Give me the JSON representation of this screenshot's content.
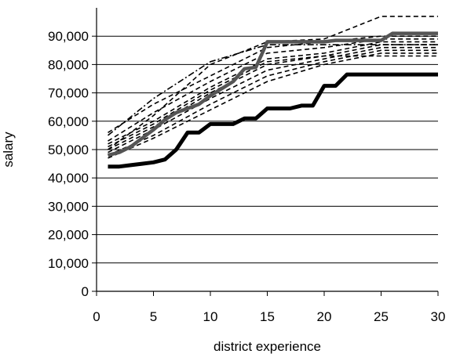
{
  "chart_data": {
    "type": "line",
    "title": "",
    "xlabel": "district experience",
    "ylabel": "salary",
    "xlim": [
      0,
      30
    ],
    "ylim": [
      0,
      100000
    ],
    "x_ticks": [
      0,
      5,
      10,
      15,
      20,
      25,
      30
    ],
    "x_tick_labels": [
      "0",
      "5",
      "10",
      "15",
      "20",
      "25",
      "30"
    ],
    "y_ticks": [
      0,
      10000,
      20000,
      30000,
      40000,
      50000,
      60000,
      70000,
      80000,
      90000
    ],
    "y_tick_labels": [
      "0",
      "10,000",
      "20,000",
      "30,000",
      "40,000",
      "50,000",
      "60,000",
      "70,000",
      "80,000",
      "90,000"
    ],
    "grid": "horizontal",
    "legend": "none",
    "series": [
      {
        "style": "thick-black",
        "color": "#000000",
        "points": [
          [
            1,
            44000
          ],
          [
            2,
            44000
          ],
          [
            3,
            44500
          ],
          [
            4,
            45000
          ],
          [
            5,
            45500
          ],
          [
            6,
            46500
          ],
          [
            7,
            50000
          ],
          [
            8,
            56000
          ],
          [
            9,
            56000
          ],
          [
            10,
            59000
          ],
          [
            11,
            59000
          ],
          [
            12,
            59000
          ],
          [
            13,
            61000
          ],
          [
            14,
            61000
          ],
          [
            15,
            64500
          ],
          [
            16,
            64500
          ],
          [
            17,
            64500
          ],
          [
            18,
            65500
          ],
          [
            19,
            65500
          ],
          [
            20,
            72500
          ],
          [
            21,
            72500
          ],
          [
            22,
            76500
          ],
          [
            23,
            76500
          ],
          [
            24,
            76500
          ],
          [
            25,
            76500
          ],
          [
            26,
            76500
          ],
          [
            27,
            76500
          ],
          [
            28,
            76500
          ],
          [
            29,
            76500
          ],
          [
            30,
            76500
          ]
        ]
      },
      {
        "style": "thick-gray",
        "color": "#555555",
        "points": [
          [
            1,
            48000
          ],
          [
            2,
            49000
          ],
          [
            3,
            51000
          ],
          [
            4,
            54000
          ],
          [
            5,
            57000
          ],
          [
            6,
            60500
          ],
          [
            7,
            63000
          ],
          [
            8,
            64500
          ],
          [
            9,
            66000
          ],
          [
            10,
            69000
          ],
          [
            11,
            71500
          ],
          [
            12,
            74000
          ],
          [
            13,
            78500
          ],
          [
            14,
            79000
          ],
          [
            15,
            88000
          ],
          [
            16,
            88000
          ],
          [
            17,
            88000
          ],
          [
            18,
            88000
          ],
          [
            19,
            88000
          ],
          [
            20,
            88000
          ],
          [
            21,
            88500
          ],
          [
            22,
            88500
          ],
          [
            23,
            88500
          ],
          [
            24,
            88500
          ],
          [
            25,
            88500
          ],
          [
            26,
            91000
          ],
          [
            27,
            91000
          ],
          [
            28,
            91000
          ],
          [
            29,
            91000
          ],
          [
            30,
            91000
          ]
        ]
      },
      {
        "style": "dashed",
        "color": "#000000",
        "points": [
          [
            1,
            50000
          ],
          [
            5,
            62000
          ],
          [
            10,
            80000
          ],
          [
            15,
            88000
          ],
          [
            20,
            89000
          ],
          [
            25,
            97000
          ],
          [
            30,
            97000
          ]
        ]
      },
      {
        "style": "dashed",
        "color": "#000000",
        "points": [
          [
            1,
            56000
          ],
          [
            5,
            66000
          ],
          [
            10,
            76000
          ],
          [
            15,
            86000
          ],
          [
            20,
            88000
          ],
          [
            25,
            90000
          ],
          [
            30,
            90000
          ]
        ]
      },
      {
        "style": "dashed",
        "color": "#000000",
        "points": [
          [
            1,
            53000
          ],
          [
            5,
            63000
          ],
          [
            10,
            74000
          ],
          [
            15,
            84000
          ],
          [
            20,
            86000
          ],
          [
            25,
            89000
          ],
          [
            30,
            89000
          ]
        ]
      },
      {
        "style": "dashed",
        "color": "#000000",
        "points": [
          [
            1,
            52000
          ],
          [
            5,
            60000
          ],
          [
            10,
            72000
          ],
          [
            15,
            82000
          ],
          [
            20,
            84000
          ],
          [
            25,
            88000
          ],
          [
            30,
            88000
          ]
        ]
      },
      {
        "style": "dashed",
        "color": "#000000",
        "points": [
          [
            1,
            50000
          ],
          [
            5,
            58000
          ],
          [
            10,
            70000
          ],
          [
            15,
            80000
          ],
          [
            20,
            83000
          ],
          [
            25,
            87000
          ],
          [
            30,
            87000
          ]
        ]
      },
      {
        "style": "dashed",
        "color": "#000000",
        "points": [
          [
            1,
            49000
          ],
          [
            5,
            57000
          ],
          [
            10,
            68000
          ],
          [
            15,
            78000
          ],
          [
            20,
            82000
          ],
          [
            25,
            86000
          ],
          [
            30,
            86000
          ]
        ]
      },
      {
        "style": "dashed",
        "color": "#000000",
        "points": [
          [
            1,
            48000
          ],
          [
            5,
            55000
          ],
          [
            10,
            66000
          ],
          [
            15,
            76000
          ],
          [
            20,
            81000
          ],
          [
            25,
            85000
          ],
          [
            30,
            85000
          ]
        ]
      },
      {
        "style": "dashed",
        "color": "#000000",
        "points": [
          [
            1,
            47000
          ],
          [
            5,
            54000
          ],
          [
            10,
            64000
          ],
          [
            15,
            74000
          ],
          [
            20,
            80000
          ],
          [
            25,
            84000
          ],
          [
            30,
            84000
          ]
        ]
      },
      {
        "style": "dashed",
        "color": "#000000",
        "points": [
          [
            1,
            51000
          ],
          [
            5,
            59000
          ],
          [
            10,
            71000
          ],
          [
            15,
            81000
          ],
          [
            20,
            83000
          ],
          [
            25,
            83000
          ],
          [
            30,
            83000
          ]
        ]
      },
      {
        "style": "dash-dot",
        "color": "#000000",
        "points": [
          [
            1,
            55000
          ],
          [
            5,
            68000
          ],
          [
            10,
            81000
          ],
          [
            15,
            87000
          ],
          [
            20,
            87000
          ],
          [
            25,
            87000
          ],
          [
            30,
            87000
          ]
        ]
      }
    ]
  }
}
